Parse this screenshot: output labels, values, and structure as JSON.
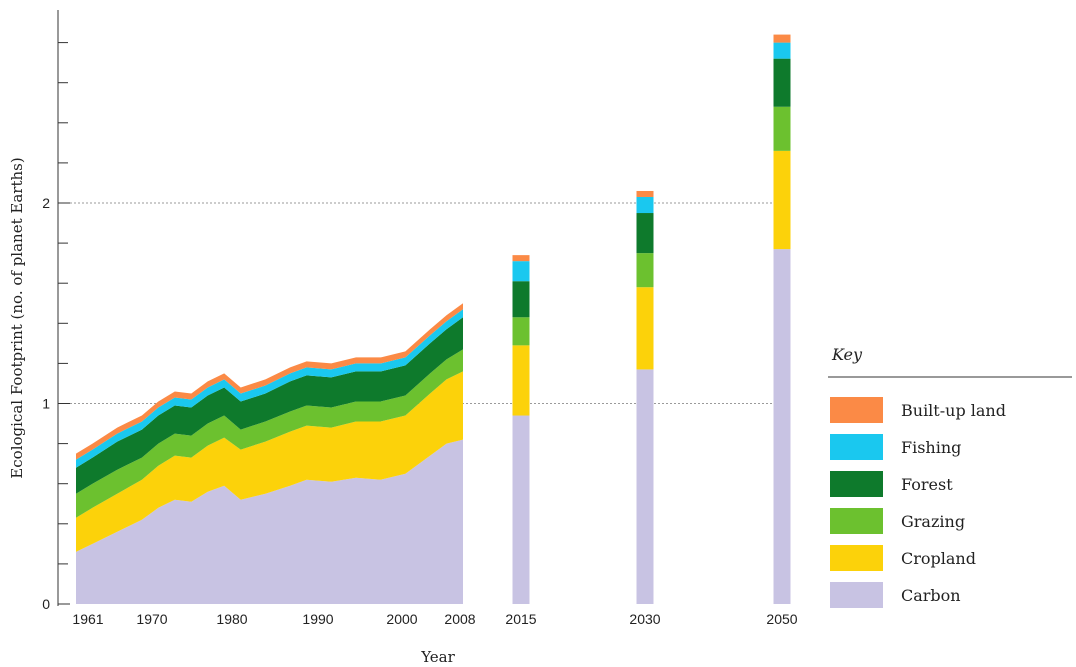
{
  "chart_data": {
    "type": "area",
    "ylabel": "Ecological Footprint (no. of planet Earths)",
    "xlabel": "Year",
    "ylim": [
      0,
      2.85
    ],
    "y_ticks_labeled": [
      "0",
      "1",
      "2"
    ],
    "y_tick_values": [
      0,
      1,
      2
    ],
    "y_minor_step": 0.2,
    "gridlines_at": [
      1,
      2
    ],
    "x_tick_labels": [
      "1961",
      "1970",
      "1980",
      "1990",
      "2000",
      "2008",
      "2015",
      "2030",
      "2050"
    ],
    "legend": {
      "title": "Key",
      "placement": "right",
      "entries": [
        "Built-up land",
        "Fishing",
        "Forest",
        "Grazing",
        "Cropland",
        "Carbon"
      ]
    },
    "colors": {
      "Carbon": "#c8c3e3",
      "Cropland": "#fcd20a",
      "Grazing": "#6cc12f",
      "Forest": "#0e7a2c",
      "Fishing": "#1ac8ef",
      "Built-up land": "#fb8a46"
    },
    "series_order": [
      "Carbon",
      "Cropland",
      "Grazing",
      "Forest",
      "Fishing",
      "Built-up land"
    ],
    "historical": {
      "x": [
        1961,
        1963,
        1966,
        1969,
        1971,
        1973,
        1975,
        1977,
        1979,
        1981,
        1984,
        1987,
        1989,
        1992,
        1995,
        1998,
        2001,
        2004,
        2006,
        2008
      ],
      "series": [
        {
          "name": "Carbon",
          "values": [
            0.26,
            0.3,
            0.36,
            0.42,
            0.48,
            0.52,
            0.51,
            0.56,
            0.59,
            0.52,
            0.55,
            0.59,
            0.62,
            0.61,
            0.63,
            0.62,
            0.65,
            0.74,
            0.8,
            0.82
          ]
        },
        {
          "name": "Cropland",
          "values": [
            0.17,
            0.18,
            0.19,
            0.2,
            0.21,
            0.22,
            0.22,
            0.23,
            0.24,
            0.25,
            0.26,
            0.27,
            0.27,
            0.27,
            0.28,
            0.29,
            0.29,
            0.31,
            0.32,
            0.34
          ]
        },
        {
          "name": "Grazing",
          "values": [
            0.12,
            0.12,
            0.12,
            0.11,
            0.11,
            0.11,
            0.11,
            0.11,
            0.11,
            0.1,
            0.1,
            0.1,
            0.1,
            0.1,
            0.1,
            0.1,
            0.1,
            0.1,
            0.1,
            0.11
          ]
        },
        {
          "name": "Forest",
          "values": [
            0.13,
            0.13,
            0.14,
            0.14,
            0.14,
            0.14,
            0.14,
            0.14,
            0.14,
            0.14,
            0.14,
            0.15,
            0.15,
            0.15,
            0.15,
            0.15,
            0.15,
            0.15,
            0.15,
            0.16
          ]
        },
        {
          "name": "Fishing",
          "values": [
            0.04,
            0.04,
            0.04,
            0.04,
            0.04,
            0.04,
            0.04,
            0.04,
            0.04,
            0.04,
            0.04,
            0.04,
            0.04,
            0.04,
            0.04,
            0.04,
            0.04,
            0.04,
            0.04,
            0.04
          ]
        },
        {
          "name": "Built-up land",
          "values": [
            0.03,
            0.03,
            0.03,
            0.03,
            0.03,
            0.03,
            0.03,
            0.03,
            0.03,
            0.03,
            0.03,
            0.03,
            0.03,
            0.03,
            0.03,
            0.03,
            0.03,
            0.03,
            0.03,
            0.03
          ]
        }
      ]
    },
    "projections": {
      "x": [
        "2015",
        "2030",
        "2050"
      ],
      "series": [
        {
          "name": "Carbon",
          "values": [
            0.94,
            1.17,
            1.77
          ]
        },
        {
          "name": "Cropland",
          "values": [
            0.35,
            0.41,
            0.49
          ]
        },
        {
          "name": "Grazing",
          "values": [
            0.14,
            0.17,
            0.22
          ]
        },
        {
          "name": "Forest",
          "values": [
            0.18,
            0.2,
            0.24
          ]
        },
        {
          "name": "Fishing",
          "values": [
            0.1,
            0.08,
            0.08
          ]
        },
        {
          "name": "Built-up land",
          "values": [
            0.03,
            0.03,
            0.04
          ]
        }
      ]
    }
  }
}
